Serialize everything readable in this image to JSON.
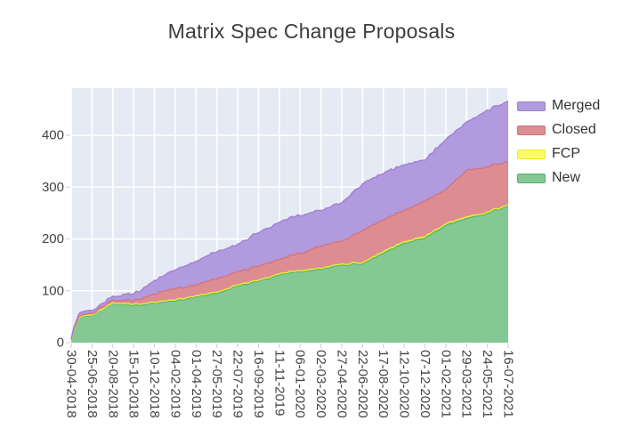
{
  "figure": {
    "title": "Matrix Spec Change Proposals",
    "background": "#ffffff"
  },
  "colors": {
    "plot_background": "#e6eaf4",
    "gridline": "#ffffff",
    "tick_mark": "#c9cdd9",
    "tick_text": "#444444",
    "title_text": "#3d3d3d",
    "legend_text": "#333333"
  },
  "legend": {
    "items": [
      {
        "label": "Merged",
        "fill": "#b19ade",
        "line": "#9f83d4"
      },
      {
        "label": "Closed",
        "fill": "#dd8d92",
        "line": "#d2757d"
      },
      {
        "label": "FCP",
        "fill": "#fbfb62",
        "line": "#ecec2e"
      },
      {
        "label": "New",
        "fill": "#85c894",
        "line": "#55b374"
      }
    ]
  },
  "chart_data": {
    "type": "area",
    "stacked": true,
    "title": "Matrix Spec Change Proposals",
    "xlabel": "",
    "ylabel": "",
    "grid": true,
    "legend_position": "outside-top-right",
    "ylim": [
      0,
      491
    ],
    "yticks": [
      0,
      100,
      200,
      300,
      400
    ],
    "y_tick_labels": [
      "0",
      "100",
      "200",
      "300",
      "400"
    ],
    "x": [
      "30-04-2018",
      "25-06-2018",
      "20-08-2018",
      "15-10-2018",
      "10-12-2018",
      "04-02-2019",
      "01-04-2019",
      "27-05-2019",
      "22-07-2019",
      "16-09-2019",
      "11-11-2019",
      "06-01-2020",
      "02-03-2020",
      "27-04-2020",
      "22-06-2020",
      "17-08-2020",
      "12-10-2020",
      "07-12-2020",
      "01-02-2021",
      "29-03-2021",
      "24-05-2021",
      "16-07-2021"
    ],
    "series": [
      {
        "name": "New",
        "fill": "#85c894",
        "line": "#55b374",
        "values": [
          5,
          52,
          76,
          72,
          76,
          80,
          89,
          95,
          110,
          118,
          130,
          137,
          141,
          150,
          152,
          172,
          192,
          201,
          226,
          240,
          250,
          264
        ]
      },
      {
        "name": "FCP",
        "fill": "#fbfb62",
        "line": "#ecec2e",
        "values": [
          0,
          1,
          1,
          2,
          2,
          2,
          2,
          2,
          2,
          2,
          2,
          2,
          2,
          2,
          2,
          3,
          3,
          3,
          3,
          3,
          2,
          2
        ]
      },
      {
        "name": "Closed",
        "fill": "#dd8d92",
        "line": "#d2757d",
        "values": [
          1,
          3,
          5,
          7,
          16,
          21,
          21,
          26,
          25,
          27,
          28,
          33,
          43,
          44,
          62,
          61,
          60,
          68,
          66,
          90,
          88,
          83
        ]
      },
      {
        "name": "Merged",
        "fill": "#b19ade",
        "line": "#9f83d4",
        "values": [
          2,
          6,
          8,
          13,
          26,
          37,
          45,
          52,
          53,
          65,
          72,
          73,
          69,
          74,
          90,
          90,
          88,
          80,
          97,
          93,
          109,
          117
        ]
      }
    ],
    "stack_totals": [
      8,
      62,
      90,
      94,
      120,
      140,
      157,
      175,
      190,
      212,
      232,
      245,
      255,
      270,
      306,
      326,
      343,
      352,
      392,
      426,
      449,
      466
    ]
  }
}
